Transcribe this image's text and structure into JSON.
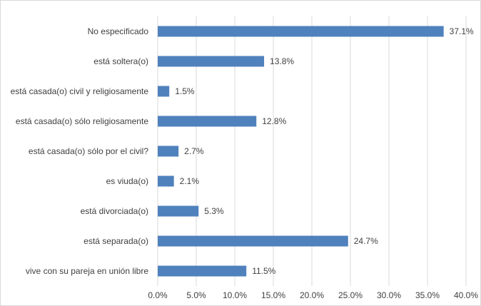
{
  "chart_data": {
    "type": "bar",
    "orientation": "horizontal",
    "categories": [
      "No especificado",
      "está soltera(o)",
      "está casada(o) civil y religiosamente",
      "está casada(o) sólo religiosamente",
      "está casada(o) sólo por el civil?",
      "es viuda(o)",
      "está divorciada(o)",
      "está separada(o)",
      "vive con su pareja en unión libre"
    ],
    "values": [
      37.1,
      13.8,
      1.5,
      12.8,
      2.7,
      2.1,
      5.3,
      24.7,
      11.5
    ],
    "data_labels": [
      "37.1%",
      "13.8%",
      "1.5%",
      "12.8%",
      "2.7%",
      "2.1%",
      "5.3%",
      "24.7%",
      "11.5%"
    ],
    "x_ticks": [
      "0.0%",
      "5.0%",
      "10.0%",
      "15.0%",
      "20.0%",
      "25.0%",
      "30.0%",
      "35.0%",
      "40.0%"
    ],
    "xlim": [
      0,
      40
    ],
    "title": "",
    "xlabel": "",
    "ylabel": "",
    "grid": "vertical",
    "bar_color": "#4f81bd",
    "grid_color": "#d9d9d9",
    "text_color": "#404040"
  }
}
